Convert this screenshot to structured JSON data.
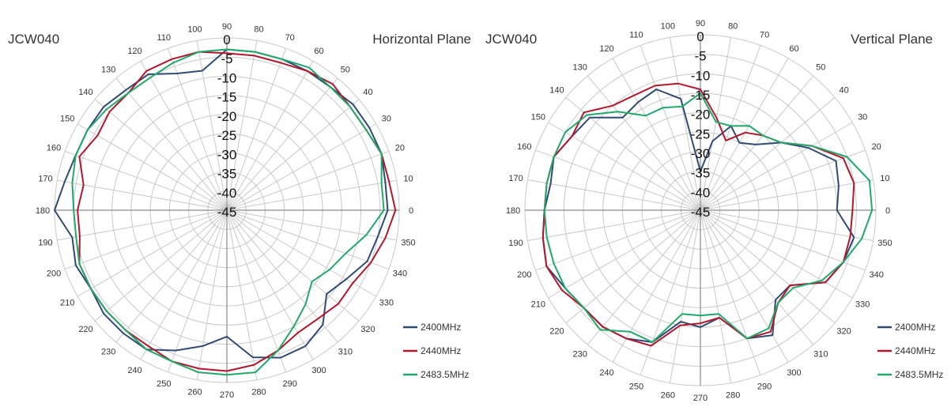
{
  "colors": {
    "s2400": "#2f4a73",
    "s2440": "#b0182d",
    "s2483": "#22a86a",
    "grid": "#c8c8c8",
    "axis": "#8a8a8a",
    "text": "#333333"
  },
  "chart_data": [
    {
      "type": "line",
      "polar": true,
      "title": "Horizontal Plane",
      "device_label": "JCW040",
      "radial_ticks": [
        "0",
        "-5",
        "-10",
        "-15",
        "-20",
        "-25",
        "-30",
        "-35",
        "-40",
        "-45"
      ],
      "rlim": [
        -45,
        0
      ],
      "angle_ticks": [
        "0",
        "10",
        "20",
        "30",
        "40",
        "50",
        "60",
        "70",
        "80",
        "90",
        "100",
        "110",
        "120",
        "130",
        "140",
        "150",
        "160",
        "170",
        "180",
        "190",
        "200",
        "210",
        "220",
        "230",
        "240",
        "250",
        "260",
        "270",
        "280",
        "290",
        "300",
        "310",
        "320",
        "330",
        "340",
        "350"
      ],
      "angles": [
        0,
        10,
        20,
        30,
        40,
        50,
        60,
        70,
        80,
        90,
        100,
        110,
        120,
        130,
        140,
        150,
        160,
        170,
        180,
        190,
        200,
        210,
        220,
        230,
        240,
        250,
        260,
        270,
        280,
        290,
        300,
        310,
        320,
        330,
        340,
        350
      ],
      "grid": true,
      "legend_position": "bottom-right",
      "series": [
        {
          "name": "2400MHz",
          "color": "#2f4a73",
          "values": [
            -3,
            -3,
            -2,
            -2,
            -2,
            -3,
            -3,
            -3,
            -3,
            -3,
            -8,
            -7,
            -4,
            -4,
            -3,
            -3,
            -3,
            -2,
            0,
            -4,
            -3,
            -4,
            -3,
            -3,
            -3,
            -6,
            -9,
            -12,
            -6,
            -4,
            -4,
            -6,
            -11,
            -9,
            -6,
            -5
          ]
        },
        {
          "name": "2440MHz",
          "color": "#b0182d",
          "values": [
            -1,
            -2,
            -2,
            -3,
            -3,
            -2,
            -3,
            -4,
            -4,
            -4,
            -3,
            -3,
            -3,
            -5,
            -5,
            -6,
            -4,
            -7,
            -6,
            -6,
            -4,
            -4,
            -4,
            -4,
            -4,
            -3,
            -3,
            -3,
            -4,
            -6,
            -8,
            -8,
            -7,
            -7,
            -5,
            -3
          ]
        },
        {
          "name": "2483.5MHz",
          "color": "#22a86a",
          "values": [
            -4,
            -4,
            -2,
            -3,
            -3,
            -3,
            -2,
            -3,
            -3,
            -3,
            -3,
            -4,
            -5,
            -5,
            -4,
            -3,
            -3,
            -4,
            -5,
            -5,
            -4,
            -4,
            -4,
            -4,
            -3,
            -3,
            -2,
            -2,
            -2,
            -6,
            -10,
            -13,
            -16,
            -14,
            -12,
            -8
          ]
        }
      ]
    },
    {
      "type": "line",
      "polar": true,
      "title": "Vertical Plane",
      "device_label": "JCW040",
      "radial_ticks": [
        "0",
        "-5",
        "-10",
        "-15",
        "-20",
        "-25",
        "-30",
        "-35",
        "-40",
        "-45"
      ],
      "rlim": [
        -45,
        0
      ],
      "angle_ticks": [
        "0",
        "10",
        "20",
        "30",
        "40",
        "50",
        "60",
        "70",
        "80",
        "90",
        "100",
        "110",
        "120",
        "130",
        "140",
        "150",
        "160",
        "170",
        "180",
        "190",
        "200",
        "210",
        "220",
        "230",
        "240",
        "250",
        "260",
        "270",
        "280",
        "290",
        "300",
        "310",
        "320",
        "330",
        "340",
        "350"
      ],
      "angles": [
        0,
        10,
        20,
        30,
        40,
        50,
        60,
        70,
        80,
        90,
        100,
        110,
        120,
        130,
        140,
        150,
        160,
        170,
        180,
        190,
        200,
        210,
        220,
        230,
        240,
        250,
        260,
        270,
        280,
        290,
        300,
        310,
        320,
        330,
        340,
        350
      ],
      "grid": true,
      "legend_position": "bottom-right",
      "series": [
        {
          "name": "2400MHz",
          "color": "#2f4a73",
          "values": [
            -10,
            -9,
            -8,
            -13,
            -18,
            -23,
            -25,
            -22,
            -27,
            -35,
            -16,
            -12,
            -13,
            -14,
            -8,
            -7,
            -5,
            -6,
            -5,
            -4,
            -3,
            -5,
            -6,
            -6,
            -7,
            -9,
            -16,
            -15,
            -17,
            -10,
            -8,
            -15,
            -15,
            -8,
            -6,
            -5
          ]
        },
        {
          "name": "2440MHz",
          "color": "#b0182d",
          "values": [
            -6,
            -5,
            -6,
            -12,
            -18,
            -20,
            -22,
            -26,
            -21,
            -14,
            -12,
            -11,
            -11,
            -10,
            -6,
            -7,
            -5,
            -5,
            -5,
            -4,
            -3,
            -4,
            -6,
            -6,
            -7,
            -8,
            -15,
            -16,
            -17,
            -10,
            -9,
            -14,
            -15,
            -8,
            -6,
            -6
          ]
        },
        {
          "name": "2483.5MHz",
          "color": "#22a86a",
          "values": [
            -1,
            -1,
            -5,
            -12,
            -18,
            -20,
            -20,
            -22,
            -22,
            -15,
            -18,
            -17,
            -17,
            -12,
            -7,
            -5,
            -5,
            -5,
            -5,
            -5,
            -5,
            -5,
            -6,
            -5,
            -9,
            -9,
            -18,
            -18,
            -18,
            -10,
            -10,
            -14,
            -14,
            -9,
            -6,
            -3
          ]
        }
      ]
    }
  ]
}
